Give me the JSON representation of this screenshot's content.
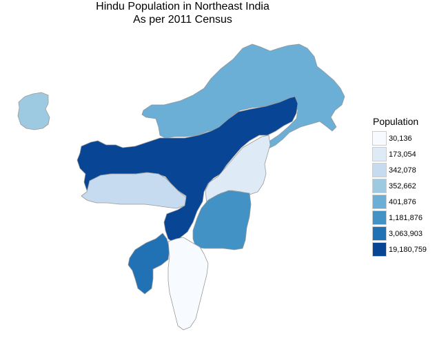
{
  "title": {
    "line1": "Hindu Population in Northeast India",
    "line2": "As per 2011 Census"
  },
  "legend": {
    "title": "Population",
    "entries": [
      {
        "label": "30,136",
        "color": "#f7fbff"
      },
      {
        "label": "173,054",
        "color": "#deebf7"
      },
      {
        "label": "342,078",
        "color": "#c6dbef"
      },
      {
        "label": "352,662",
        "color": "#9ecae1"
      },
      {
        "label": "401,876",
        "color": "#6baed6"
      },
      {
        "label": "1,181,876",
        "color": "#4292c6"
      },
      {
        "label": "3,063,903",
        "color": "#2171b5"
      },
      {
        "label": "19,180,759",
        "color": "#084594"
      }
    ]
  },
  "regions": [
    {
      "id": "sikkim",
      "value": "352,662",
      "color": "#9ecae1"
    },
    {
      "id": "arunachal-pradesh",
      "value": "401,876",
      "color": "#6baed6"
    },
    {
      "id": "assam",
      "value": "19,180,759",
      "color": "#084594"
    },
    {
      "id": "meghalaya",
      "value": "342,078",
      "color": "#c6dbef"
    },
    {
      "id": "nagaland",
      "value": "173,054",
      "color": "#deebf7"
    },
    {
      "id": "manipur",
      "value": "1,181,876",
      "color": "#4292c6"
    },
    {
      "id": "tripura",
      "value": "3,063,903",
      "color": "#2171b5"
    },
    {
      "id": "mizoram",
      "value": "30,136",
      "color": "#f7fbff"
    }
  ]
}
